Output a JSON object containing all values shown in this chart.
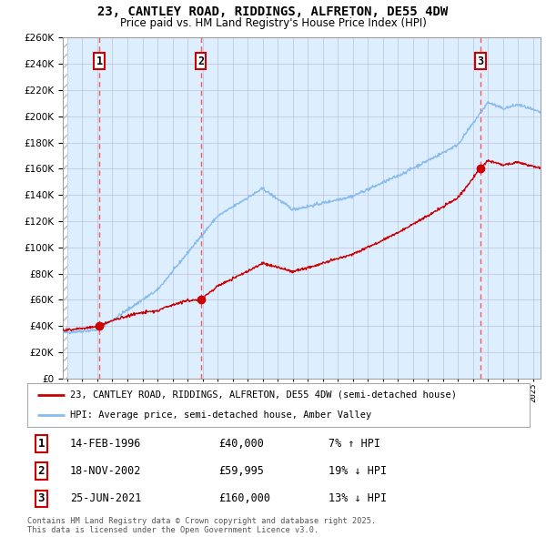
{
  "title_line1": "23, CANTLEY ROAD, RIDDINGS, ALFRETON, DE55 4DW",
  "title_line2": "Price paid vs. HM Land Registry's House Price Index (HPI)",
  "background_color": "#ffffff",
  "plot_bg_color": "#ddeeff",
  "grid_color": "#aaaacc",
  "red_line_color": "#cc0000",
  "blue_line_color": "#88bbee",
  "dashed_line_color": "#ff5555",
  "transactions": [
    {
      "num": 1,
      "date_label": "14-FEB-1996",
      "price": 40000,
      "pct": "7%",
      "direction": "↑",
      "year": 1996.12
    },
    {
      "num": 2,
      "date_label": "18-NOV-2002",
      "price": 59995,
      "pct": "19%",
      "direction": "↓",
      "year": 2002.88
    },
    {
      "num": 3,
      "date_label": "25-JUN-2021",
      "price": 160000,
      "pct": "13%",
      "direction": "↓",
      "year": 2021.48
    }
  ],
  "ylim": [
    0,
    260000
  ],
  "xlim_start": 1993.7,
  "xlim_end": 2025.5,
  "ytick_step": 20000,
  "legend_line1": "23, CANTLEY ROAD, RIDDINGS, ALFRETON, DE55 4DW (semi-detached house)",
  "legend_line2": "HPI: Average price, semi-detached house, Amber Valley",
  "footnote": "Contains HM Land Registry data © Crown copyright and database right 2025.\nThis data is licensed under the Open Government Licence v3.0."
}
